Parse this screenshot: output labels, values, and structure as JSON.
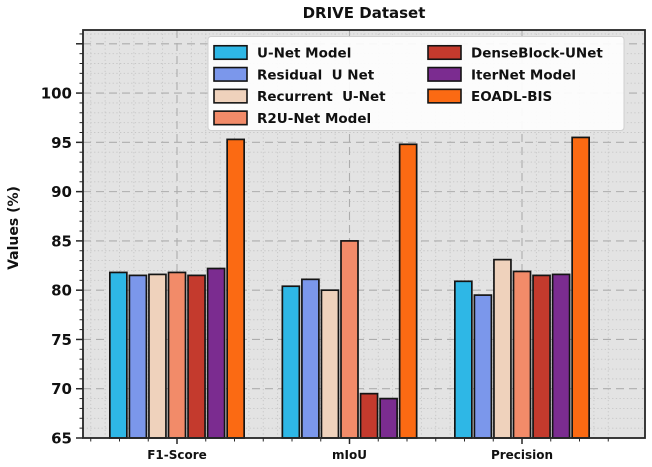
{
  "chart_data": {
    "type": "bar",
    "title": "DRIVE Dataset",
    "xlabel": "",
    "ylabel": "Values (%)",
    "categories": [
      "F1-Score",
      "mIoU",
      "Precision"
    ],
    "series": [
      {
        "name": "U-Net Model",
        "color": "#2EB7E6",
        "values": [
          81.8,
          80.4,
          80.9
        ]
      },
      {
        "name": "Residual  U Net",
        "color": "#7B97EB",
        "values": [
          81.5,
          81.1,
          79.5
        ]
      },
      {
        "name": "Recurrent  U-Net",
        "color": "#EFD2BC",
        "values": [
          81.6,
          80.0,
          83.1
        ]
      },
      {
        "name": "R2U-Net Model",
        "color": "#F28B69",
        "values": [
          81.8,
          85.0,
          81.9
        ]
      },
      {
        "name": "DenseBlock-UNet",
        "color": "#C43A2D",
        "values": [
          81.5,
          69.5,
          81.5
        ]
      },
      {
        "name": "IterNet Model",
        "color": "#7B2C90",
        "values": [
          82.2,
          69.0,
          81.6
        ]
      },
      {
        "name": "EOADL-BIS",
        "color": "#FB6A13",
        "values": [
          95.3,
          94.8,
          95.5
        ]
      }
    ],
    "ylim": [
      65,
      106.4
    ],
    "yticks": [
      65,
      70,
      75,
      80,
      85,
      90,
      95,
      100
    ],
    "grid": "major dashed + minor dotted, both axes",
    "legend_position": "upper center, 2 columns, 4+3 rows",
    "plot_background": "#E3E3E3",
    "bar_edge_color": "#141414",
    "spine_color": "#262626",
    "major_grid_color": "#ADADAD",
    "minor_grid_color": "#C6C6C6"
  }
}
